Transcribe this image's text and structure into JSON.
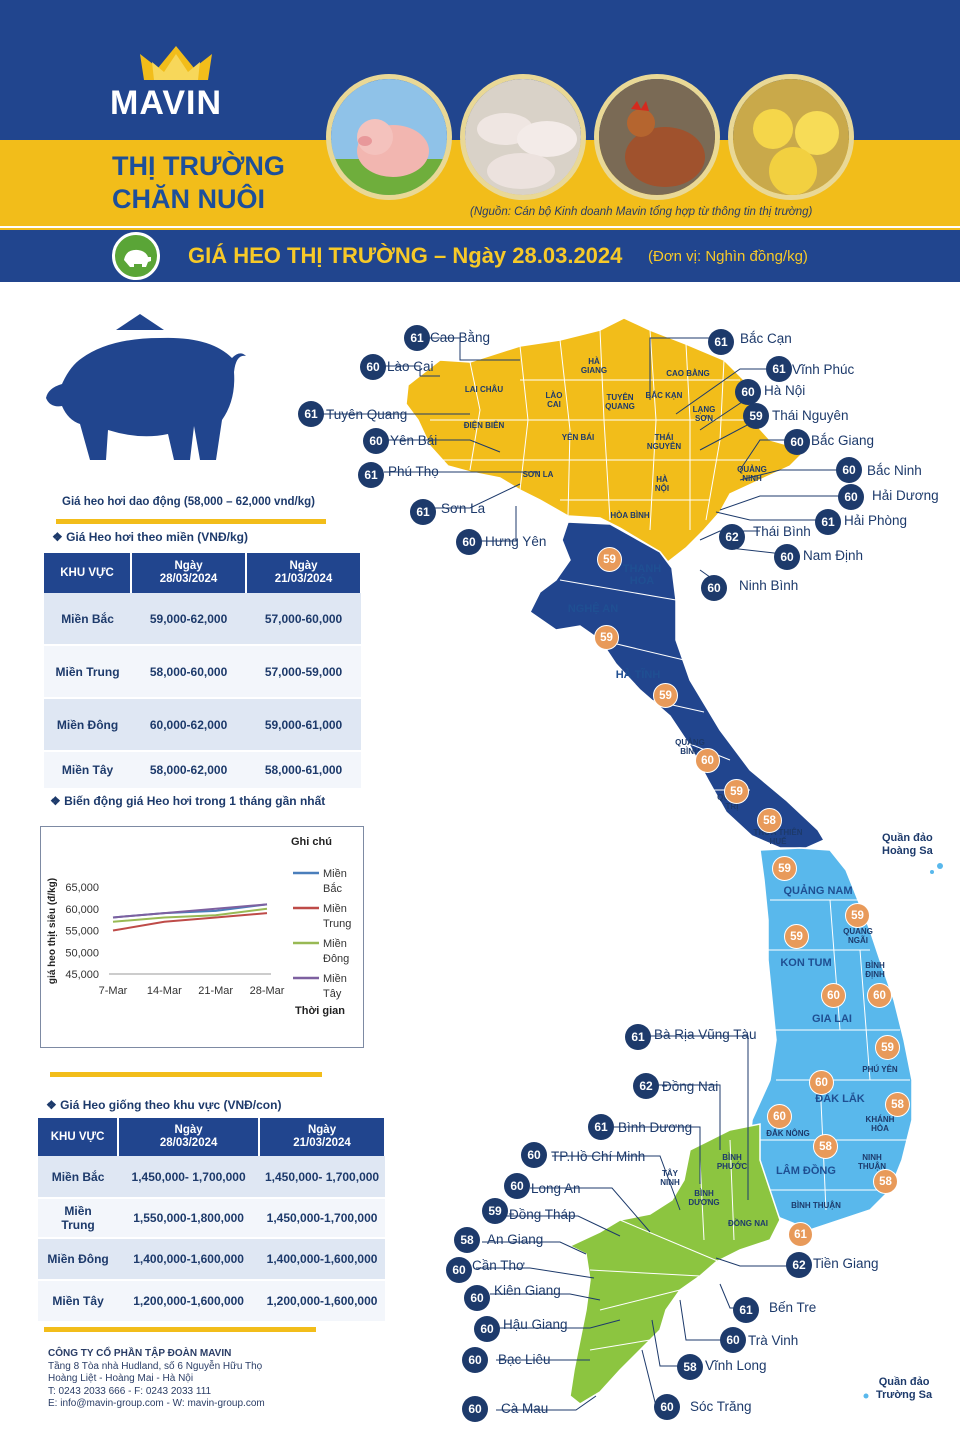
{
  "brand": {
    "logo_text": "MAVIN",
    "title_line1": "THỊ TRƯỜNG",
    "title_line2": "CHĂN NUÔI"
  },
  "header": {
    "source_note": "(Nguồn: Cán bộ Kinh doanh Mavin tổng hợp từ thông tin thị trường)",
    "title": "GIÁ HEO THỊ TRƯỜNG – Ngày 28.03.2024",
    "unit": "(Đơn vị: Nghìn đồng/kg)"
  },
  "left": {
    "range_note": "Giá heo hơi dao động (58,000 – 62,000 vnd/kg)",
    "hog_section": "❖  Giá Heo hơi theo miền (VNĐ/kg)",
    "hog_table": {
      "headers": [
        "KHU VỰC",
        "Ngày\n28/03/2024",
        "Ngày\n21/03/2024"
      ],
      "rows": [
        [
          "Miền Bắc",
          "59,000-62,000",
          "57,000-60,000"
        ],
        [
          "Miền Trung",
          "58,000-60,000",
          "57,000-59,000"
        ],
        [
          "Miền Đông",
          "60,000-62,000",
          "59,000-61,000"
        ],
        [
          "Miền Tây",
          "58,000-62,000",
          "58,000-61,000"
        ]
      ]
    },
    "chart_section": "❖  Biến động giá Heo hơi trong 1 tháng gần nhất",
    "breed_section": "❖  Giá Heo giống theo khu vực (VNĐ/con)",
    "breed_table": {
      "headers": [
        "KHU VỰC",
        "Ngày\n28/03/2024",
        "Ngày\n21/03/2024"
      ],
      "rows": [
        [
          "Miền Bắc",
          "1,450,000- 1,700,000",
          "1,450,000- 1,700,000"
        ],
        [
          "Miền\nTrung",
          "1,550,000-1,800,000",
          "1,450,000-1,700,000"
        ],
        [
          "Miền Đông",
          "1,400,000-1,600,000",
          "1,400,000-1,600,000"
        ],
        [
          "Miền Tây",
          "1,200,000-1,600,000",
          "1,200,000-1,600,000"
        ]
      ]
    }
  },
  "chart_data": {
    "type": "line",
    "x": [
      "7-Mar",
      "14-Mar",
      "21-Mar",
      "28-Mar"
    ],
    "ylim": [
      45000,
      65000
    ],
    "yticks": [
      "65,000",
      "60,000",
      "55,000",
      "50,000",
      "45,000"
    ],
    "ylabel": "giá heo thịt siêu (đ/kg)",
    "xlabel": "Thời gian",
    "legend_title": "Ghi chú",
    "series": [
      {
        "name": "Miền Bắc",
        "color": "#4a7ebb",
        "values": [
          58000,
          59000,
          59500,
          61000
        ]
      },
      {
        "name": "Miền Trung",
        "color": "#be4b48",
        "values": [
          55000,
          57000,
          58000,
          59000
        ]
      },
      {
        "name": "Miền Đông",
        "color": "#98b954",
        "values": [
          57000,
          58000,
          58500,
          60000
        ]
      },
      {
        "name": "Miền Tây",
        "color": "#7d60a0",
        "values": [
          58000,
          59000,
          60000,
          61000
        ]
      }
    ]
  },
  "footer": {
    "company": "CÔNG TY CỔ PHẦN TẬP ĐOÀN MAVIN",
    "line1": "Tầng 8 Tòa nhà Hudland, số 6 Nguyễn Hữu Thọ",
    "line2": "Hoàng Liệt - Hoàng Mai - Hà Nội",
    "line3": "T: 0243 2033 666 - F: 0243 2033 111",
    "line4": "E: info@mavin-group.com -  W: mavin-group.com"
  },
  "map": {
    "north": [
      {
        "price": "61",
        "name": "Cao Bằng"
      },
      {
        "price": "60",
        "name": "Lào Cai"
      },
      {
        "price": "61",
        "name": "Tuyên Quang"
      },
      {
        "price": "60",
        "name": "Yên Bái"
      },
      {
        "price": "61",
        "name": "Phú Thọ"
      },
      {
        "price": "61",
        "name": "Sơn La"
      },
      {
        "price": "60",
        "name": "Hưng Yên"
      },
      {
        "price": "61",
        "name": "Bắc Cạn"
      },
      {
        "price": "61",
        "name": "Vĩnh Phúc"
      },
      {
        "price": "60",
        "name": "Hà Nội"
      },
      {
        "price": "59",
        "name": "Thái Nguyên"
      },
      {
        "price": "60",
        "name": "Bắc Giang"
      },
      {
        "price": "60",
        "name": "Bắc Ninh"
      },
      {
        "price": "60",
        "name": "Hải Dương"
      },
      {
        "price": "61",
        "name": "Hải Phòng"
      },
      {
        "price": "62",
        "name": "Thái Bình"
      },
      {
        "price": "60",
        "name": "Nam Định"
      },
      {
        "price": "60",
        "name": "Ninh Bình"
      }
    ],
    "south": [
      {
        "price": "61",
        "name": "Bà Rịa Vũng Tàu"
      },
      {
        "price": "62",
        "name": "Đồng Nai"
      },
      {
        "price": "61",
        "name": "Bình Dương"
      },
      {
        "price": "60",
        "name": "TP.Hồ Chí Minh"
      },
      {
        "price": "60",
        "name": "Long An"
      },
      {
        "price": "59",
        "name": "Đồng Tháp"
      },
      {
        "price": "58",
        "name": "An Giang"
      },
      {
        "price": "60",
        "name": "Cần Thơ"
      },
      {
        "price": "60",
        "name": "Kiên Giang"
      },
      {
        "price": "60",
        "name": "Hậu Giang"
      },
      {
        "price": "60",
        "name": "Bạc Liêu"
      },
      {
        "price": "60",
        "name": "Cà Mau"
      },
      {
        "price": "62",
        "name": "Tiền Giang"
      },
      {
        "price": "61",
        "name": "Bến Tre"
      },
      {
        "price": "60",
        "name": "Trà Vinh"
      },
      {
        "price": "58",
        "name": "Vĩnh Long"
      },
      {
        "price": "60",
        "name": "Sóc Trăng"
      }
    ],
    "central_prices": [
      "59",
      "59",
      "59",
      "60",
      "59",
      "58",
      "59",
      "59",
      "59",
      "60",
      "60",
      "59",
      "60",
      "58",
      "58",
      "58",
      "60",
      "61"
    ],
    "islands": {
      "hoang_sa": "Quần đảo\nHoàng Sa",
      "truong_sa": "Quần đảo\nTrường Sa"
    },
    "region_labels": {
      "thanh_hoa": "THANH\nHÓA",
      "nghe_an": "NGHỆ AN",
      "ha_tinh": "HÀ TĨNH",
      "quang_binh": "QUẢNG\nBÌNH",
      "quang_tri": "QUẢNG\nTRỊ",
      "hue": "THỪA THIÊN\nHUẾ",
      "quang_nam": "QUẢNG NAM",
      "quang_ngai": "QUẢNG\nNGÃI",
      "kon_tum": "KON TUM",
      "binh_dinh": "BÌNH\nĐỊNH",
      "gia_lai": "GIA LAI",
      "phu_yen": "PHÚ YÊN",
      "dak_lak": "ĐẮK LẮK",
      "khanh_hoa": "KHÁNH\nHÒA",
      "dak_nong": "ĐẮK NÔNG",
      "lam_dong": "LÂM ĐỒNG",
      "ninh_thuan": "NINH\nTHUẬN",
      "binh_thuan": "BÌNH THUẬN",
      "binh_phuoc": "BÌNH\nPHƯỚC",
      "tay_ninh": "TÂY\nNINH",
      "binh_duong": "BÌNH\nDƯƠNG",
      "dong_nai": "ĐỒNG NAI",
      "lai_chau": "LAI CHÂU",
      "dien_bien": "ĐIỆN BIÊN",
      "ha_giang": "HÀ\nGIANG",
      "cao_bang": "CAO BẰNG",
      "lao_cai": "LÀO\nCAI",
      "bac_kan": "BẮC KẠN",
      "lang_son": "LẠNG\nSƠN",
      "tuyen_quang": "TUYÊN\nQUANG",
      "yen_bai": "YÊN BÁI",
      "son_la": "SƠN LA",
      "hoa_binh": "HÒA BÌNH",
      "thai_nguyen": "THÁI\nNGUYÊN",
      "quang_ninh": "QUẢNG\nNINH",
      "ha_noi": "HÀ\nNỘI"
    }
  }
}
